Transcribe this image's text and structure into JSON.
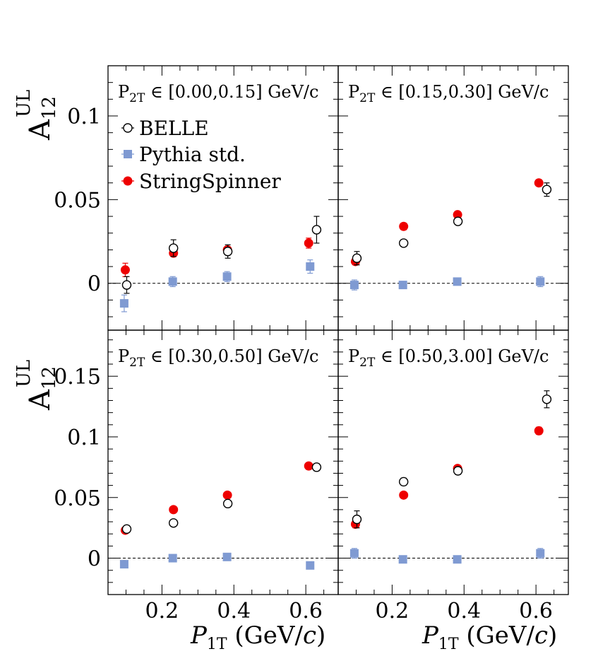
{
  "chart_data": {
    "type": "scatter",
    "x_label": {
      "main": "P",
      "sub": "1T",
      "rest": " (GeV/",
      "italic": "c",
      "close": ")"
    },
    "y_label": {
      "main": "A",
      "sub": "12",
      "sup": "UL"
    },
    "legend": [
      {
        "name": "BELLE"
      },
      {
        "name": "Pythia std."
      },
      {
        "name": "StringSpinner"
      }
    ],
    "colors": {
      "belle": "#000000",
      "pythia": "#7f9ad2",
      "stringspinner": "#ee0000"
    },
    "xlim": [
      0.05,
      0.69
    ],
    "x_ticks": [
      "0.2",
      "0.4",
      "0.6"
    ],
    "panels": [
      {
        "label": {
          "main": "P",
          "sub": "2T",
          "rest": " ∈ [0.00,0.15] GeV/c"
        },
        "ylim": [
          -0.028,
          0.13
        ],
        "y_ticks": [
          "0",
          "0.05",
          "0.1"
        ],
        "series": {
          "belle": {
            "x": [
              0.102,
              0.232,
              0.383,
              0.63
            ],
            "y": [
              -0.001,
              0.021,
              0.019,
              0.032
            ],
            "err": [
              0.005,
              0.005,
              0.004,
              0.008
            ]
          },
          "pythia": {
            "x": [
              0.095,
              0.23,
              0.381,
              0.612
            ],
            "y": [
              -0.012,
              0.001,
              0.004,
              0.01
            ],
            "err": [
              0.005,
              0.003,
              0.003,
              0.004
            ]
          },
          "stringspinner": {
            "x": [
              0.098,
              0.232,
              0.382,
              0.608
            ],
            "y": [
              0.008,
              0.018,
              0.02,
              0.024
            ],
            "err": [
              0.004,
              0.002,
              0.002,
              0.003
            ]
          }
        }
      },
      {
        "label": {
          "main": "P",
          "sub": "2T",
          "rest": " ∈ [0.15,0.30] GeV/c"
        },
        "ylim": [
          -0.028,
          0.13
        ],
        "y_ticks": [],
        "series": {
          "belle": {
            "x": [
              0.102,
              0.232,
              0.383,
              0.63
            ],
            "y": [
              0.015,
              0.024,
              0.037,
              0.056
            ],
            "err": [
              0.004,
              0.002,
              0.002,
              0.004
            ]
          },
          "pythia": {
            "x": [
              0.095,
              0.23,
              0.381,
              0.612
            ],
            "y": [
              -0.001,
              -0.001,
              0.001,
              0.001
            ],
            "err": [
              0.003,
              0.002,
              0.002,
              0.003
            ]
          },
          "stringspinner": {
            "x": [
              0.098,
              0.232,
              0.382,
              0.608
            ],
            "y": [
              0.013,
              0.034,
              0.041,
              0.06
            ],
            "err": [
              0.002,
              0.002,
              0.002,
              0.002
            ]
          }
        }
      },
      {
        "label": {
          "main": "P",
          "sub": "2T",
          "rest": " ∈ [0.30,0.50] GeV/c"
        },
        "ylim": [
          -0.03,
          0.188
        ],
        "y_ticks": [
          "0",
          "0.05",
          "0.1",
          "0.15"
        ],
        "series": {
          "belle": {
            "x": [
              0.102,
              0.232,
              0.383,
              0.63
            ],
            "y": [
              0.024,
              0.029,
              0.045,
              0.075
            ],
            "err": [
              0.003,
              0.002,
              0.002,
              0.003
            ]
          },
          "pythia": {
            "x": [
              0.095,
              0.23,
              0.381,
              0.612
            ],
            "y": [
              -0.005,
              0.0,
              0.001,
              -0.006
            ],
            "err": [
              0.002,
              0.002,
              0.002,
              0.002
            ]
          },
          "stringspinner": {
            "x": [
              0.098,
              0.232,
              0.382,
              0.608
            ],
            "y": [
              0.023,
              0.04,
              0.052,
              0.076
            ],
            "err": [
              0.002,
              0.002,
              0.002,
              0.002
            ]
          }
        }
      },
      {
        "label": {
          "main": "P",
          "sub": "2T",
          "rest": " ∈ [0.50,3.00] GeV/c"
        },
        "ylim": [
          -0.03,
          0.188
        ],
        "y_ticks": [],
        "series": {
          "belle": {
            "x": [
              0.102,
              0.232,
              0.383,
              0.63
            ],
            "y": [
              0.032,
              0.063,
              0.072,
              0.131
            ],
            "err": [
              0.007,
              0.003,
              0.003,
              0.007
            ]
          },
          "pythia": {
            "x": [
              0.095,
              0.23,
              0.381,
              0.612
            ],
            "y": [
              0.004,
              -0.001,
              -0.001,
              0.004
            ],
            "err": [
              0.004,
              0.002,
              0.002,
              0.004
            ]
          },
          "stringspinner": {
            "x": [
              0.098,
              0.232,
              0.382,
              0.608
            ],
            "y": [
              0.028,
              0.052,
              0.074,
              0.105
            ],
            "err": [
              0.003,
              0.002,
              0.002,
              0.003
            ]
          }
        }
      }
    ]
  }
}
